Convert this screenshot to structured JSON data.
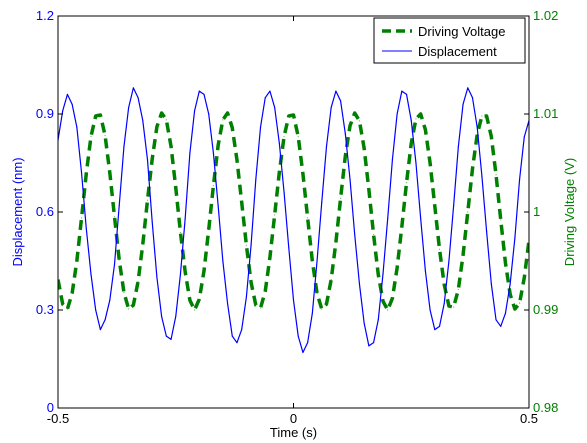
{
  "colors": {
    "left_axis": "#0000ff",
    "right_axis": "#008000",
    "frame": "#000000",
    "background": "#ffffff"
  },
  "chart_data": {
    "type": "line",
    "title": "",
    "xlabel": "Time (s)",
    "ylabel_left": "Displacement (nm)",
    "ylabel_right": "Driving Voltage (V)",
    "xlim": [
      -0.5,
      0.5
    ],
    "ylim_left": [
      0,
      1.2
    ],
    "ylim_right": [
      0.98,
      1.02
    ],
    "x_ticks": [
      {
        "value": -0.5,
        "label": "-0.5"
      },
      {
        "value": 0,
        "label": "0"
      },
      {
        "value": 0.5,
        "label": "0.5"
      }
    ],
    "y_left_ticks": [
      {
        "value": 0,
        "label": "0"
      },
      {
        "value": 0.3,
        "label": "0.3"
      },
      {
        "value": 0.6,
        "label": "0.6"
      },
      {
        "value": 0.9,
        "label": "0.9"
      },
      {
        "value": 1.2,
        "label": "1.2"
      }
    ],
    "y_right_ticks": [
      {
        "value": 0.98,
        "label": "0.98"
      },
      {
        "value": 0.99,
        "label": "0.99"
      },
      {
        "value": 1.0,
        "label": "1"
      },
      {
        "value": 1.01,
        "label": "1.01"
      },
      {
        "value": 1.02,
        "label": "1.02"
      }
    ],
    "grid": false,
    "legend_position": "top-right",
    "series": [
      {
        "name": "Driving Voltage",
        "axis": "right",
        "color": "#008000",
        "style": "dashed",
        "x": [
          -0.5,
          -0.49,
          -0.48,
          -0.47,
          -0.46,
          -0.45,
          -0.44,
          -0.43,
          -0.42,
          -0.41,
          -0.4,
          -0.39,
          -0.38,
          -0.37,
          -0.36,
          -0.35,
          -0.34,
          -0.33,
          -0.32,
          -0.31,
          -0.3,
          -0.29,
          -0.28,
          -0.27,
          -0.26,
          -0.25,
          -0.24,
          -0.23,
          -0.22,
          -0.21,
          -0.2,
          -0.19,
          -0.18,
          -0.17,
          -0.16,
          -0.15,
          -0.14,
          -0.13,
          -0.12,
          -0.11,
          -0.1,
          -0.09,
          -0.08,
          -0.07,
          -0.06,
          -0.05,
          -0.04,
          -0.03,
          -0.02,
          -0.01,
          0,
          0.01,
          0.02,
          0.03,
          0.04,
          0.05,
          0.06,
          0.07,
          0.08,
          0.09,
          0.1,
          0.11,
          0.12,
          0.13,
          0.14,
          0.15,
          0.16,
          0.17,
          0.18,
          0.19,
          0.2,
          0.21,
          0.22,
          0.23,
          0.24,
          0.25,
          0.26,
          0.27,
          0.28,
          0.29,
          0.3,
          0.31,
          0.32,
          0.33,
          0.34,
          0.35,
          0.36,
          0.37,
          0.38,
          0.39,
          0.4,
          0.41,
          0.42,
          0.43,
          0.44,
          0.45,
          0.46,
          0.47,
          0.48,
          0.49,
          0.5
        ],
        "values": [
          0.9931,
          0.9906,
          0.9901,
          0.9917,
          0.995,
          0.9994,
          1.0039,
          1.0077,
          1.0098,
          1.0099,
          1.0078,
          1.004,
          0.9995,
          0.9951,
          0.9918,
          0.9901,
          0.9905,
          0.9929,
          0.9967,
          1.0012,
          1.0054,
          1.0087,
          1.0101,
          1.0094,
          1.0067,
          1.0025,
          0.9979,
          0.9939,
          0.991,
          0.99,
          0.9911,
          0.994,
          0.9982,
          1.0027,
          1.0068,
          1.0094,
          1.0101,
          1.0086,
          1.0053,
          1.001,
          0.9966,
          0.9928,
          0.9905,
          0.9902,
          0.9919,
          0.9954,
          0.9997,
          1.0041,
          1.0077,
          1.0098,
          1.0099,
          1.0077,
          1.0039,
          0.9994,
          0.995,
          0.9917,
          0.9901,
          0.9906,
          0.9931,
          0.9969,
          1.0014,
          1.0057,
          1.0088,
          1.0101,
          1.0093,
          1.0065,
          1.0023,
          0.9977,
          0.9936,
          0.9909,
          0.99,
          0.9912,
          0.9943,
          0.9985,
          1.003,
          1.007,
          1.0095,
          1.01,
          1.0084,
          1.005,
          1.0006,
          0.9962,
          0.9926,
          0.9904,
          0.9903,
          0.9921,
          0.9956,
          1.0,
          1.0044,
          1.0079,
          1.0098,
          1.0098,
          1.0077,
          1.0038,
          0.9992,
          0.9948,
          0.9916,
          0.9901,
          0.9907,
          0.9933,
          0.9971
        ]
      },
      {
        "name": "Displacement",
        "axis": "left",
        "color": "#0000ff",
        "style": "solid",
        "x": [
          -0.5,
          -0.49,
          -0.48,
          -0.47,
          -0.46,
          -0.45,
          -0.44,
          -0.43,
          -0.42,
          -0.41,
          -0.4,
          -0.39,
          -0.38,
          -0.37,
          -0.36,
          -0.35,
          -0.34,
          -0.33,
          -0.32,
          -0.31,
          -0.3,
          -0.29,
          -0.28,
          -0.27,
          -0.26,
          -0.25,
          -0.24,
          -0.23,
          -0.22,
          -0.21,
          -0.2,
          -0.19,
          -0.18,
          -0.17,
          -0.16,
          -0.15,
          -0.14,
          -0.13,
          -0.12,
          -0.11,
          -0.1,
          -0.09,
          -0.08,
          -0.07,
          -0.06,
          -0.05,
          -0.04,
          -0.03,
          -0.02,
          -0.01,
          0,
          0.01,
          0.02,
          0.03,
          0.04,
          0.05,
          0.06,
          0.07,
          0.08,
          0.09,
          0.1,
          0.11,
          0.12,
          0.13,
          0.14,
          0.15,
          0.16,
          0.17,
          0.18,
          0.19,
          0.2,
          0.21,
          0.22,
          0.23,
          0.24,
          0.25,
          0.26,
          0.27,
          0.28,
          0.29,
          0.3,
          0.31,
          0.32,
          0.33,
          0.34,
          0.35,
          0.36,
          0.37,
          0.38,
          0.39,
          0.4,
          0.41,
          0.42,
          0.43,
          0.44,
          0.45,
          0.46,
          0.47,
          0.48,
          0.49,
          0.5
        ],
        "values": [
          0.82,
          0.91,
          0.96,
          0.93,
          0.86,
          0.72,
          0.55,
          0.41,
          0.3,
          0.24,
          0.27,
          0.33,
          0.44,
          0.62,
          0.8,
          0.92,
          0.98,
          0.95,
          0.88,
          0.76,
          0.57,
          0.4,
          0.28,
          0.22,
          0.21,
          0.28,
          0.41,
          0.58,
          0.78,
          0.91,
          0.97,
          0.96,
          0.9,
          0.78,
          0.62,
          0.45,
          0.32,
          0.22,
          0.2,
          0.24,
          0.34,
          0.5,
          0.7,
          0.86,
          0.95,
          0.97,
          0.92,
          0.81,
          0.66,
          0.49,
          0.33,
          0.22,
          0.17,
          0.2,
          0.29,
          0.45,
          0.63,
          0.8,
          0.92,
          0.97,
          0.94,
          0.84,
          0.7,
          0.53,
          0.38,
          0.26,
          0.19,
          0.2,
          0.27,
          0.41,
          0.58,
          0.76,
          0.9,
          0.97,
          0.96,
          0.88,
          0.75,
          0.58,
          0.42,
          0.3,
          0.24,
          0.25,
          0.32,
          0.45,
          0.62,
          0.8,
          0.93,
          0.98,
          0.95,
          0.86,
          0.71,
          0.54,
          0.38,
          0.27,
          0.25,
          0.29,
          0.38,
          0.52,
          0.7,
          0.83,
          0.88
        ]
      }
    ]
  }
}
